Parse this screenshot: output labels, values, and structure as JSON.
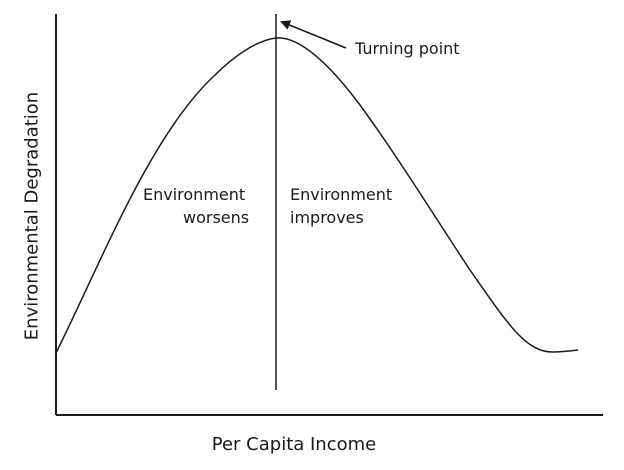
{
  "axes": {
    "x_label": "Per Capita Income",
    "y_label": "Environmental Degradation"
  },
  "regions": {
    "left_line1": "Environment",
    "left_line2": "worsens",
    "right_line1": "Environment",
    "right_line2": "improves"
  },
  "annotation": {
    "turning_point": "Turning point"
  },
  "colors": {
    "line": "#1a1a1a",
    "background": "#ffffff"
  }
}
